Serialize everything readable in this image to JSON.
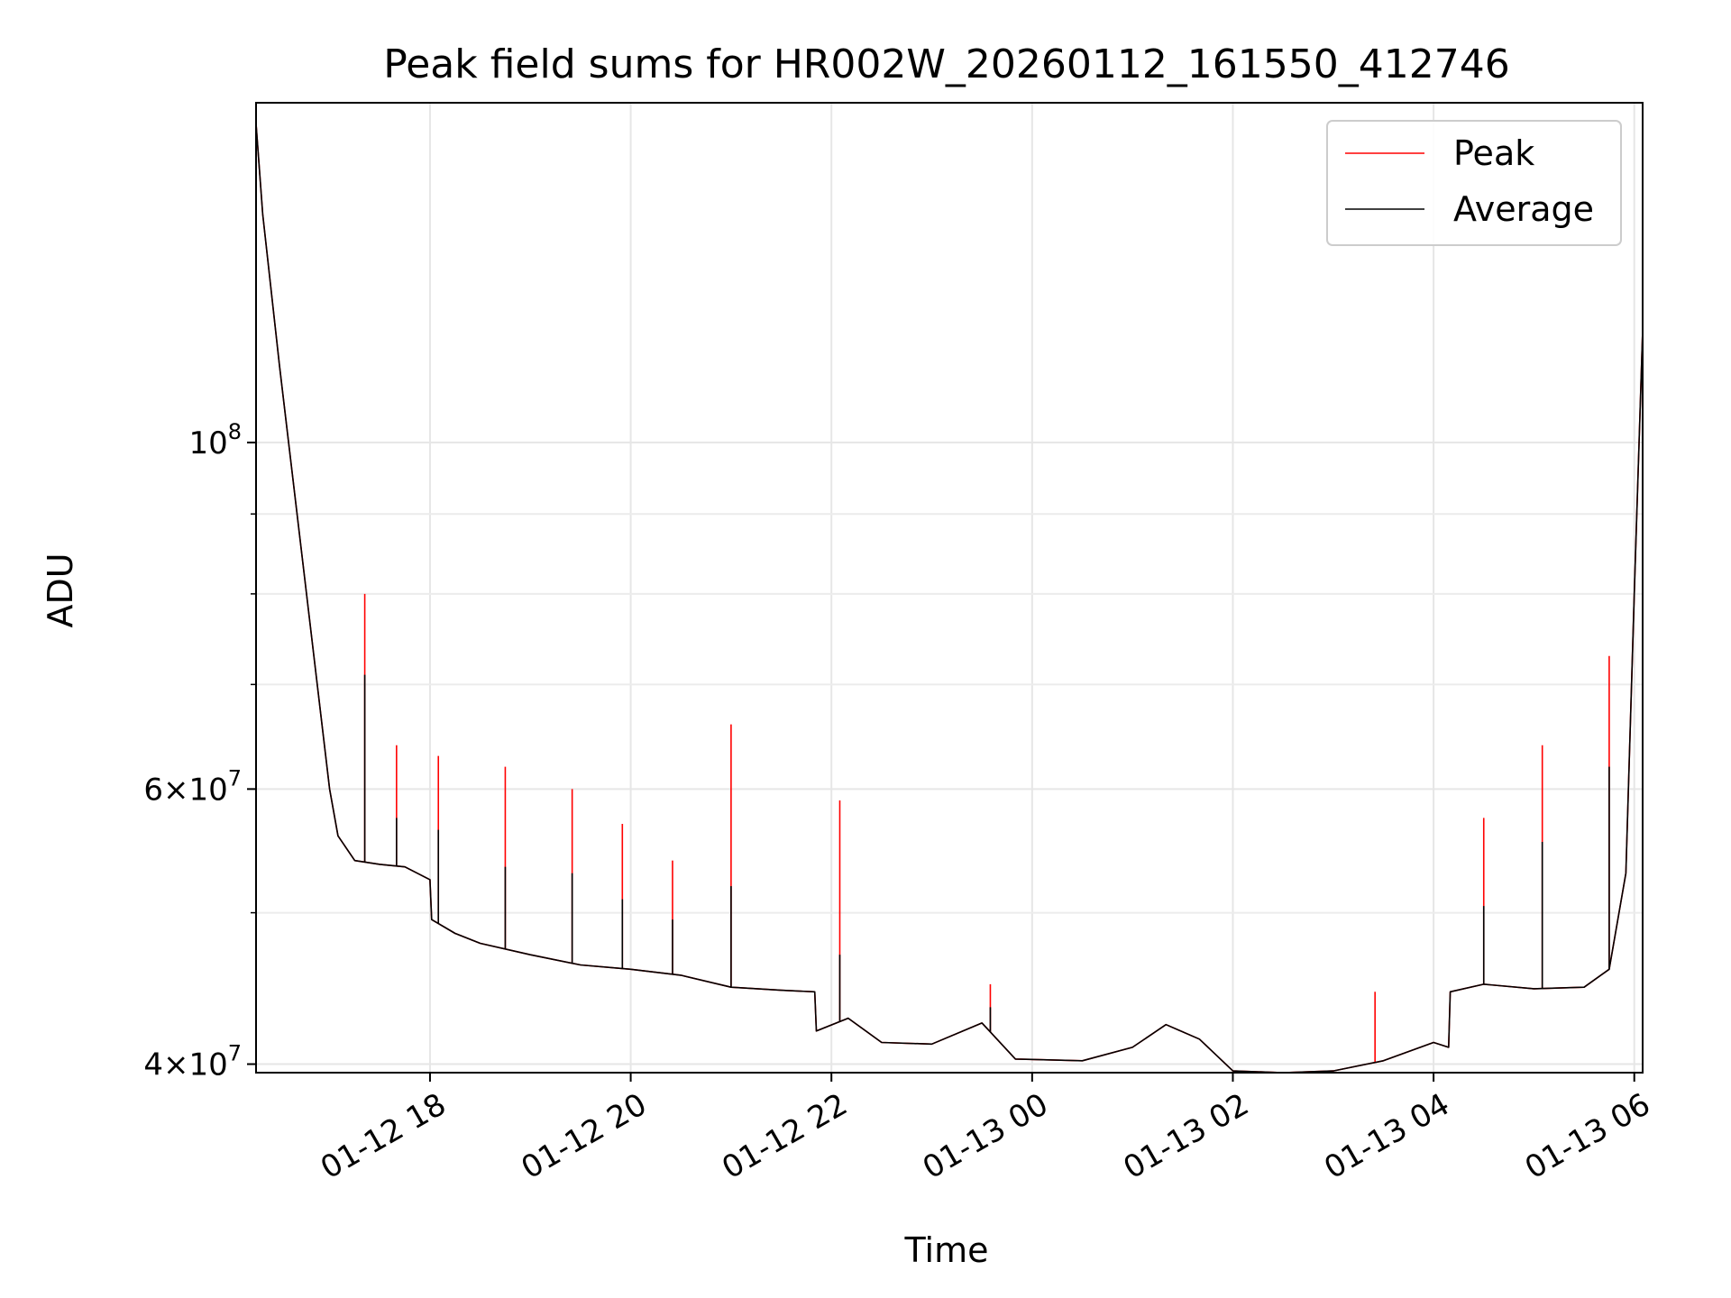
{
  "chart_data": {
    "type": "line",
    "title": "Peak field sums for HR002W_20260112_161550_412746",
    "xlabel": "Time",
    "ylabel": "ADU",
    "yscale": "log",
    "xlim": [
      "2026-01-12 16:16",
      "2026-01-13 06:05"
    ],
    "ylim": [
      39500000,
      165000000
    ],
    "grid": true,
    "legend_position": "top-right",
    "x_ticks": [
      "01-12 18",
      "01-12 20",
      "01-12 22",
      "01-13 00",
      "01-13 02",
      "01-13 04",
      "01-13 06"
    ],
    "y_ticks": [
      {
        "value": 40000000,
        "mantissa": "4",
        "exponent": "7"
      },
      {
        "value": 60000000,
        "mantissa": "6",
        "exponent": "7"
      },
      {
        "value": 100000000,
        "mantissa": "",
        "exponent": "8"
      }
    ],
    "series": [
      {
        "name": "Peak",
        "color": "#ff0000",
        "x": [
          "2026-01-12 16:16",
          "2026-01-12 16:20",
          "2026-01-12 16:30",
          "2026-01-12 16:45",
          "2026-01-12 17:00",
          "2026-01-12 17:05",
          "2026-01-12 17:15",
          "2026-01-12 17:30",
          "2026-01-12 17:45",
          "2026-01-12 18:00",
          "2026-01-12 18:01",
          "2026-01-12 18:15",
          "2026-01-12 18:30",
          "2026-01-12 19:00",
          "2026-01-12 19:30",
          "2026-01-12 20:00",
          "2026-01-12 20:30",
          "2026-01-12 21:00",
          "2026-01-12 21:30",
          "2026-01-12 21:50",
          "2026-01-12 21:51",
          "2026-01-12 22:10",
          "2026-01-12 22:30",
          "2026-01-12 23:00",
          "2026-01-12 23:30",
          "2026-01-12 23:50",
          "2026-01-13 00:30",
          "2026-01-13 01:00",
          "2026-01-13 01:20",
          "2026-01-13 01:40",
          "2026-01-13 02:00",
          "2026-01-13 02:30",
          "2026-01-13 03:00",
          "2026-01-13 03:30",
          "2026-01-13 04:00",
          "2026-01-13 04:09",
          "2026-01-13 04:10",
          "2026-01-13 04:30",
          "2026-01-13 05:00",
          "2026-01-13 05:30",
          "2026-01-13 05:45",
          "2026-01-13 05:55",
          "2026-01-13 06:00",
          "2026-01-13 06:05"
        ],
        "values": [
          160000000,
          140000000,
          112000000,
          82000000,
          60000000,
          56000000,
          54000000,
          53700000,
          53500000,
          52500000,
          49500000,
          48500000,
          47800000,
          47000000,
          46300000,
          46000000,
          45600000,
          44800000,
          44600000,
          44500000,
          42000000,
          42800000,
          41300000,
          41200000,
          42500000,
          40300000,
          40200000,
          41000000,
          42400000,
          41500000,
          39600000,
          39500000,
          39600000,
          40200000,
          41300000,
          41000000,
          44500000,
          45000000,
          44700000,
          44800000,
          46000000,
          53000000,
          80000000,
          118000000
        ],
        "spikes": [
          {
            "x": "2026-01-12 17:21",
            "y": 80000000
          },
          {
            "x": "2026-01-12 17:40",
            "y": 64000000
          },
          {
            "x": "2026-01-12 18:05",
            "y": 63000000
          },
          {
            "x": "2026-01-12 18:45",
            "y": 62000000
          },
          {
            "x": "2026-01-12 19:25",
            "y": 60000000
          },
          {
            "x": "2026-01-12 19:55",
            "y": 57000000
          },
          {
            "x": "2026-01-12 20:25",
            "y": 54000000
          },
          {
            "x": "2026-01-12 21:00",
            "y": 66000000
          },
          {
            "x": "2026-01-12 22:05",
            "y": 59000000
          },
          {
            "x": "2026-01-12 23:35",
            "y": 45000000
          },
          {
            "x": "2026-01-13 03:25",
            "y": 44500000
          },
          {
            "x": "2026-01-13 04:30",
            "y": 57500000
          },
          {
            "x": "2026-01-13 05:05",
            "y": 64000000
          },
          {
            "x": "2026-01-13 05:45",
            "y": 73000000
          }
        ]
      },
      {
        "name": "Average",
        "color": "#000000",
        "x": [
          "2026-01-12 16:16",
          "2026-01-12 16:20",
          "2026-01-12 16:30",
          "2026-01-12 16:45",
          "2026-01-12 17:00",
          "2026-01-12 17:05",
          "2026-01-12 17:15",
          "2026-01-12 17:30",
          "2026-01-12 17:45",
          "2026-01-12 18:00",
          "2026-01-12 18:01",
          "2026-01-12 18:15",
          "2026-01-12 18:30",
          "2026-01-12 19:00",
          "2026-01-12 19:30",
          "2026-01-12 20:00",
          "2026-01-12 20:30",
          "2026-01-12 21:00",
          "2026-01-12 21:30",
          "2026-01-12 21:50",
          "2026-01-12 21:51",
          "2026-01-12 22:10",
          "2026-01-12 22:30",
          "2026-01-12 23:00",
          "2026-01-12 23:30",
          "2026-01-12 23:50",
          "2026-01-13 00:30",
          "2026-01-13 01:00",
          "2026-01-13 01:20",
          "2026-01-13 01:40",
          "2026-01-13 02:00",
          "2026-01-13 02:30",
          "2026-01-13 03:00",
          "2026-01-13 03:30",
          "2026-01-13 04:00",
          "2026-01-13 04:09",
          "2026-01-13 04:10",
          "2026-01-13 04:30",
          "2026-01-13 05:00",
          "2026-01-13 05:30",
          "2026-01-13 05:45",
          "2026-01-13 05:55",
          "2026-01-13 06:00",
          "2026-01-13 06:05"
        ],
        "values": [
          160000000,
          140000000,
          112000000,
          82000000,
          60000000,
          56000000,
          54000000,
          53700000,
          53500000,
          52500000,
          49500000,
          48500000,
          47800000,
          47000000,
          46300000,
          46000000,
          45600000,
          44800000,
          44600000,
          44500000,
          42000000,
          42800000,
          41300000,
          41200000,
          42500000,
          40300000,
          40200000,
          41000000,
          42400000,
          41500000,
          39600000,
          39500000,
          39600000,
          40200000,
          41300000,
          41000000,
          44500000,
          45000000,
          44700000,
          44800000,
          46000000,
          53000000,
          80000000,
          118000000
        ],
        "spikes": [
          {
            "x": "2026-01-12 17:21",
            "y": 71000000
          },
          {
            "x": "2026-01-12 17:40",
            "y": 57500000
          },
          {
            "x": "2026-01-12 18:05",
            "y": 56500000
          },
          {
            "x": "2026-01-12 18:45",
            "y": 53500000
          },
          {
            "x": "2026-01-12 19:25",
            "y": 53000000
          },
          {
            "x": "2026-01-12 19:55",
            "y": 51000000
          },
          {
            "x": "2026-01-12 20:25",
            "y": 49500000
          },
          {
            "x": "2026-01-12 21:00",
            "y": 52000000
          },
          {
            "x": "2026-01-12 22:05",
            "y": 47000000
          },
          {
            "x": "2026-01-12 23:35",
            "y": 43500000
          },
          {
            "x": "2026-01-13 04:30",
            "y": 50500000
          },
          {
            "x": "2026-01-13 05:05",
            "y": 55500000
          },
          {
            "x": "2026-01-13 05:45",
            "y": 62000000
          }
        ]
      }
    ]
  }
}
